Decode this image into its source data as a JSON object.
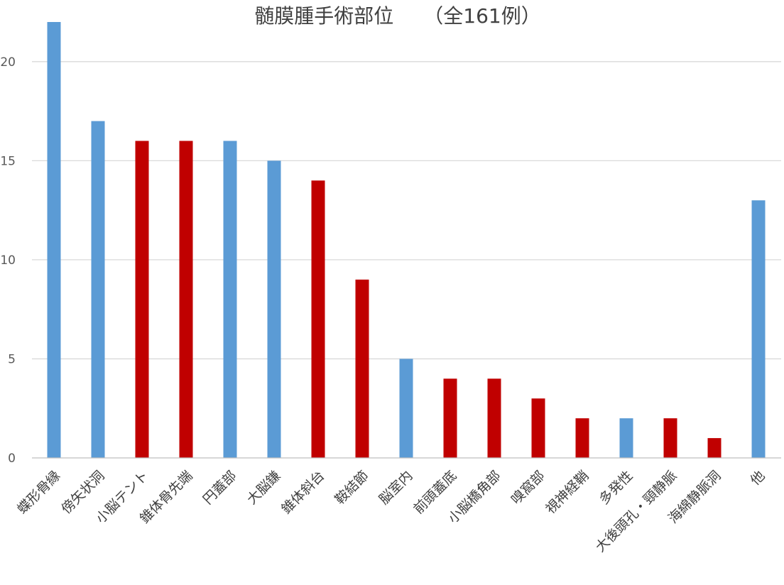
{
  "chart_data": {
    "type": "bar",
    "title": "髄膜腫手術部位　　（全161例）",
    "xlabel": "",
    "ylabel": "",
    "ylim": [
      0,
      22
    ],
    "yticks": [
      0,
      5,
      10,
      15,
      20
    ],
    "grid": true,
    "categories": [
      "蝶形骨縁",
      "傍矢状洞",
      "小脳テント",
      "錐体骨先端",
      "円蓋部",
      "大脳鎌",
      "錐体斜台",
      "鞍結節",
      "脳室内",
      "前頭蓋底",
      "小脳橋角部",
      "嗅窩部",
      "視神経鞘",
      "多発性",
      "大後頭孔・頸静脈",
      "海綿静脈洞",
      "他"
    ],
    "values": [
      22,
      17,
      16,
      16,
      16,
      15,
      14,
      9,
      5,
      4,
      4,
      3,
      2,
      2,
      2,
      1,
      13
    ],
    "colors": [
      "#5b9bd5",
      "#5b9bd5",
      "#c00000",
      "#c00000",
      "#5b9bd5",
      "#5b9bd5",
      "#c00000",
      "#c00000",
      "#5b9bd5",
      "#c00000",
      "#c00000",
      "#c00000",
      "#c00000",
      "#5b9bd5",
      "#c00000",
      "#c00000",
      "#5b9bd5"
    ]
  }
}
